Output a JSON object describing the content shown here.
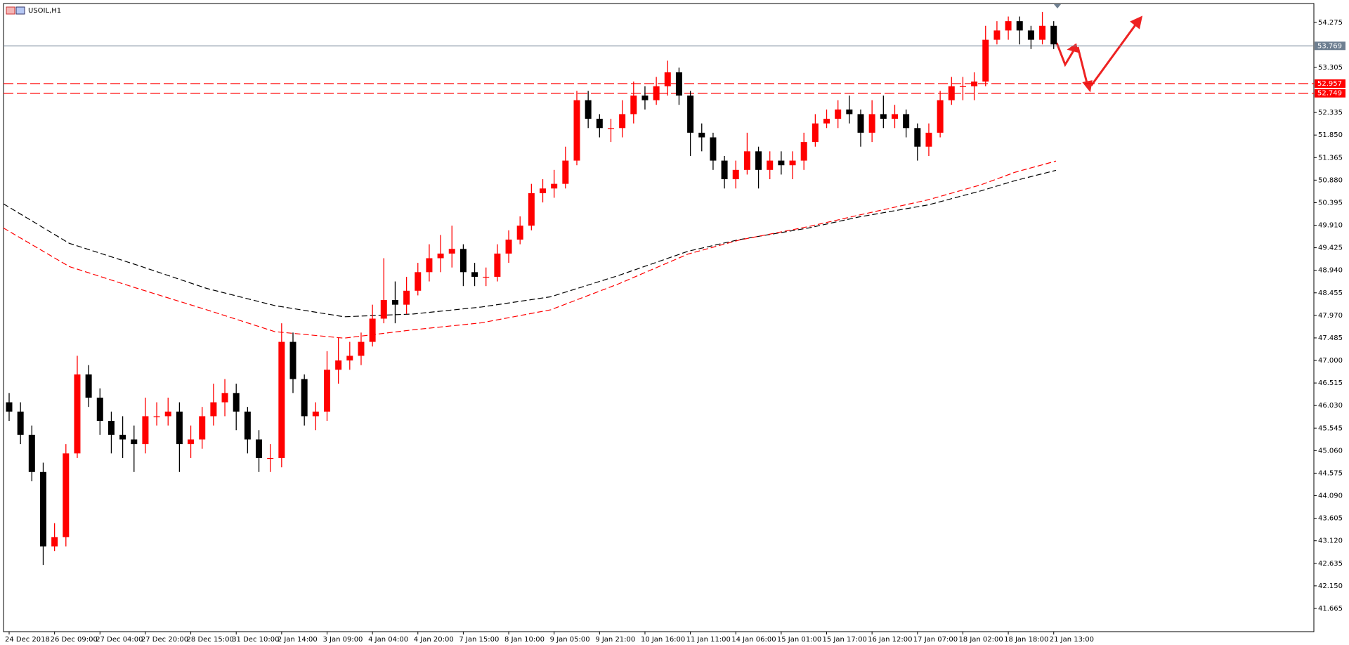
{
  "chart_data": {
    "type": "candlestick",
    "title": "USOIL,H1",
    "categories": [
      "24 Dec 2018",
      null,
      null,
      null,
      "26 Dec 09:00",
      null,
      null,
      null,
      "27 Dec 04:00",
      null,
      null,
      null,
      "27 Dec 20:00",
      null,
      null,
      null,
      "28 Dec 15:00",
      null,
      null,
      null,
      "31 Dec 10:00",
      null,
      null,
      null,
      "2 Jan 14:00",
      null,
      null,
      null,
      "3 Jan 09:00",
      null,
      null,
      null,
      "4 Jan 04:00",
      null,
      null,
      null,
      "4 Jan 20:00",
      null,
      null,
      null,
      "7 Jan 15:00",
      null,
      null,
      null,
      "8 Jan 10:00",
      null,
      null,
      null,
      "9 Jan 05:00",
      null,
      null,
      null,
      "9 Jan 21:00",
      null,
      null,
      null,
      "10 Jan 16:00",
      null,
      null,
      null,
      "11 Jan 11:00",
      null,
      null,
      null,
      "14 Jan 06:00",
      null,
      null,
      null,
      "15 Jan 01:00",
      null,
      null,
      null,
      "15 Jan 17:00",
      null,
      null,
      null,
      "16 Jan 12:00",
      null,
      null,
      null,
      "17 Jan 07:00",
      null,
      null,
      null,
      "18 Jan 02:00",
      null,
      null,
      null,
      "18 Jan 18:00",
      null,
      null,
      null,
      "21 Jan 13:00"
    ],
    "open": [
      46.1,
      45.9,
      45.4,
      44.6,
      43.0,
      43.2,
      45.0,
      46.7,
      46.2,
      45.7,
      45.4,
      45.3,
      45.2,
      45.8,
      45.8,
      45.9,
      45.2,
      45.3,
      45.8,
      46.1,
      46.3,
      45.9,
      45.3,
      44.9,
      44.9,
      47.4,
      46.6,
      45.8,
      45.9,
      46.8,
      47.0,
      47.1,
      47.4,
      47.9,
      48.3,
      48.2,
      48.5,
      48.9,
      49.2,
      49.3,
      49.4,
      48.9,
      48.8,
      48.8,
      49.3,
      49.6,
      49.9,
      50.6,
      50.7,
      50.8,
      51.3,
      52.6,
      52.2,
      52.0,
      52.0,
      52.3,
      52.7,
      52.6,
      52.9,
      53.2,
      52.7,
      51.9,
      51.8,
      51.3,
      50.9,
      51.1,
      51.5,
      51.1,
      51.3,
      51.2,
      51.3,
      51.7,
      52.1,
      52.2,
      52.4,
      52.3,
      51.9,
      52.3,
      52.2,
      52.3,
      52.0,
      51.6,
      51.9,
      52.6,
      52.9,
      52.9,
      53.0,
      53.9,
      54.1,
      54.3,
      54.1,
      53.9,
      54.2
    ],
    "high": [
      46.3,
      46.1,
      45.6,
      44.8,
      43.5,
      45.2,
      47.1,
      46.9,
      46.4,
      45.9,
      45.8,
      45.6,
      46.2,
      46.1,
      46.2,
      46.1,
      45.6,
      46.0,
      46.5,
      46.6,
      46.5,
      46.0,
      45.5,
      45.2,
      47.8,
      47.6,
      46.7,
      46.1,
      47.2,
      47.5,
      47.4,
      47.6,
      48.2,
      49.2,
      48.7,
      48.8,
      49.1,
      49.5,
      49.7,
      49.9,
      49.5,
      49.1,
      49.0,
      49.5,
      49.8,
      50.1,
      50.8,
      50.9,
      51.1,
      51.6,
      52.8,
      52.8,
      52.3,
      52.2,
      52.6,
      53.0,
      52.9,
      53.1,
      53.45,
      53.3,
      52.8,
      52.1,
      51.9,
      51.4,
      51.3,
      51.9,
      51.6,
      51.5,
      51.5,
      51.5,
      51.9,
      52.3,
      52.4,
      52.6,
      52.7,
      52.4,
      52.6,
      52.7,
      52.5,
      52.4,
      52.1,
      52.1,
      52.8,
      53.1,
      53.1,
      53.2,
      54.2,
      54.3,
      54.4,
      54.4,
      54.2,
      54.5,
      54.3
    ],
    "low": [
      45.7,
      45.2,
      44.4,
      42.6,
      42.9,
      43.0,
      44.9,
      46.0,
      45.4,
      45.0,
      44.9,
      44.6,
      45.0,
      45.6,
      45.6,
      44.6,
      44.9,
      45.1,
      45.6,
      45.8,
      45.5,
      45.0,
      44.6,
      44.6,
      44.7,
      46.3,
      45.6,
      45.5,
      45.7,
      46.5,
      46.8,
      46.9,
      47.3,
      47.8,
      47.8,
      48.0,
      48.4,
      48.7,
      48.9,
      49.0,
      48.6,
      48.6,
      48.6,
      48.7,
      49.1,
      49.5,
      49.8,
      50.4,
      50.5,
      50.7,
      51.2,
      52.0,
      51.8,
      51.7,
      51.8,
      52.1,
      52.4,
      52.5,
      52.7,
      52.5,
      51.4,
      51.5,
      51.1,
      50.7,
      50.7,
      51.0,
      50.7,
      50.9,
      51.0,
      50.9,
      51.1,
      51.6,
      52.0,
      52.0,
      52.1,
      51.6,
      51.7,
      52.0,
      52.0,
      51.8,
      51.3,
      51.4,
      51.8,
      52.5,
      52.6,
      52.6,
      52.9,
      53.8,
      53.9,
      53.8,
      53.7,
      53.8,
      53.7
    ],
    "close": [
      45.9,
      45.4,
      44.6,
      43.0,
      43.2,
      45.0,
      46.7,
      46.2,
      45.7,
      45.4,
      45.3,
      45.2,
      45.8,
      45.8,
      45.9,
      45.2,
      45.3,
      45.8,
      46.1,
      46.3,
      45.9,
      45.3,
      44.9,
      44.9,
      47.4,
      46.6,
      45.8,
      45.9,
      46.8,
      47.0,
      47.1,
      47.4,
      47.9,
      48.3,
      48.2,
      48.5,
      48.9,
      49.2,
      49.3,
      49.4,
      48.9,
      48.8,
      48.8,
      49.3,
      49.6,
      49.9,
      50.6,
      50.7,
      50.8,
      51.3,
      52.6,
      52.2,
      52.0,
      52.0,
      52.3,
      52.7,
      52.6,
      52.9,
      53.2,
      52.7,
      51.9,
      51.8,
      51.3,
      50.9,
      51.1,
      51.5,
      51.1,
      51.3,
      51.2,
      51.3,
      51.7,
      52.1,
      52.2,
      52.4,
      52.3,
      51.9,
      52.3,
      52.2,
      52.3,
      52.0,
      51.6,
      51.9,
      52.6,
      52.9,
      52.9,
      53.0,
      53.9,
      54.1,
      54.3,
      54.1,
      53.9,
      54.2,
      53.8
    ],
    "up_color": "#ff0000",
    "down_color": "#000000",
    "lines": [
      {
        "color": "#000000",
        "x": [
          -0.5,
          5.3,
          11.3,
          17.4,
          23.4,
          29.5,
          35.6,
          41.6,
          47.7,
          53.7,
          59.8,
          64.3,
          70.4,
          74.9,
          81.0,
          85.6,
          88.6,
          92.2
        ],
        "values": [
          50.37,
          49.52,
          49.05,
          48.55,
          48.18,
          47.94,
          48.0,
          48.15,
          48.37,
          48.83,
          49.35,
          49.6,
          49.85,
          50.09,
          50.35,
          50.65,
          50.87,
          51.09
        ]
      },
      {
        "color": "#ff0000",
        "x": [
          -0.5,
          5.3,
          11.3,
          17.4,
          23.4,
          29.5,
          35.6,
          41.6,
          47.7,
          53.7,
          59.8,
          64.3,
          70.4,
          74.9,
          81.0,
          85.6,
          88.6,
          92.2
        ],
        "values": [
          49.85,
          49.02,
          48.55,
          48.09,
          47.62,
          47.48,
          47.66,
          47.81,
          48.09,
          48.65,
          49.29,
          49.59,
          49.88,
          50.13,
          50.46,
          50.78,
          51.05,
          51.29
        ]
      }
    ],
    "price_lines": [
      {
        "value": 53.769,
        "color": "#6e7f91",
        "dashed": false
      },
      {
        "value": 52.957,
        "color": "#ff0000",
        "dashed": true
      },
      {
        "value": 52.749,
        "color": "#ff0000",
        "dashed": true
      }
    ],
    "ylim": [
      41.165,
      54.68
    ],
    "yticks": [
      54.275,
      53.305,
      52.335,
      {
        "value": 51.85,
        "label": "51.850"
      },
      51.365,
      {
        "value": 50.88,
        "label": "50.880"
      },
      50.395,
      {
        "value": 49.91,
        "label": "49.910"
      },
      49.425,
      {
        "value": 48.94,
        "label": "48.940"
      },
      48.455,
      {
        "value": 47.97,
        "label": "47.970"
      },
      47.485,
      {
        "value": 47,
        "label": "47.000"
      },
      46.515,
      {
        "value": 46.03,
        "label": "46.030"
      },
      45.545,
      {
        "value": 45.06,
        "label": "45.060"
      },
      44.575,
      {
        "value": 44.09,
        "label": "44.090"
      },
      43.605,
      {
        "value": 43.12,
        "label": "43.120"
      },
      42.635,
      {
        "value": 42.15,
        "label": "42.150"
      },
      41.665
    ]
  }
}
